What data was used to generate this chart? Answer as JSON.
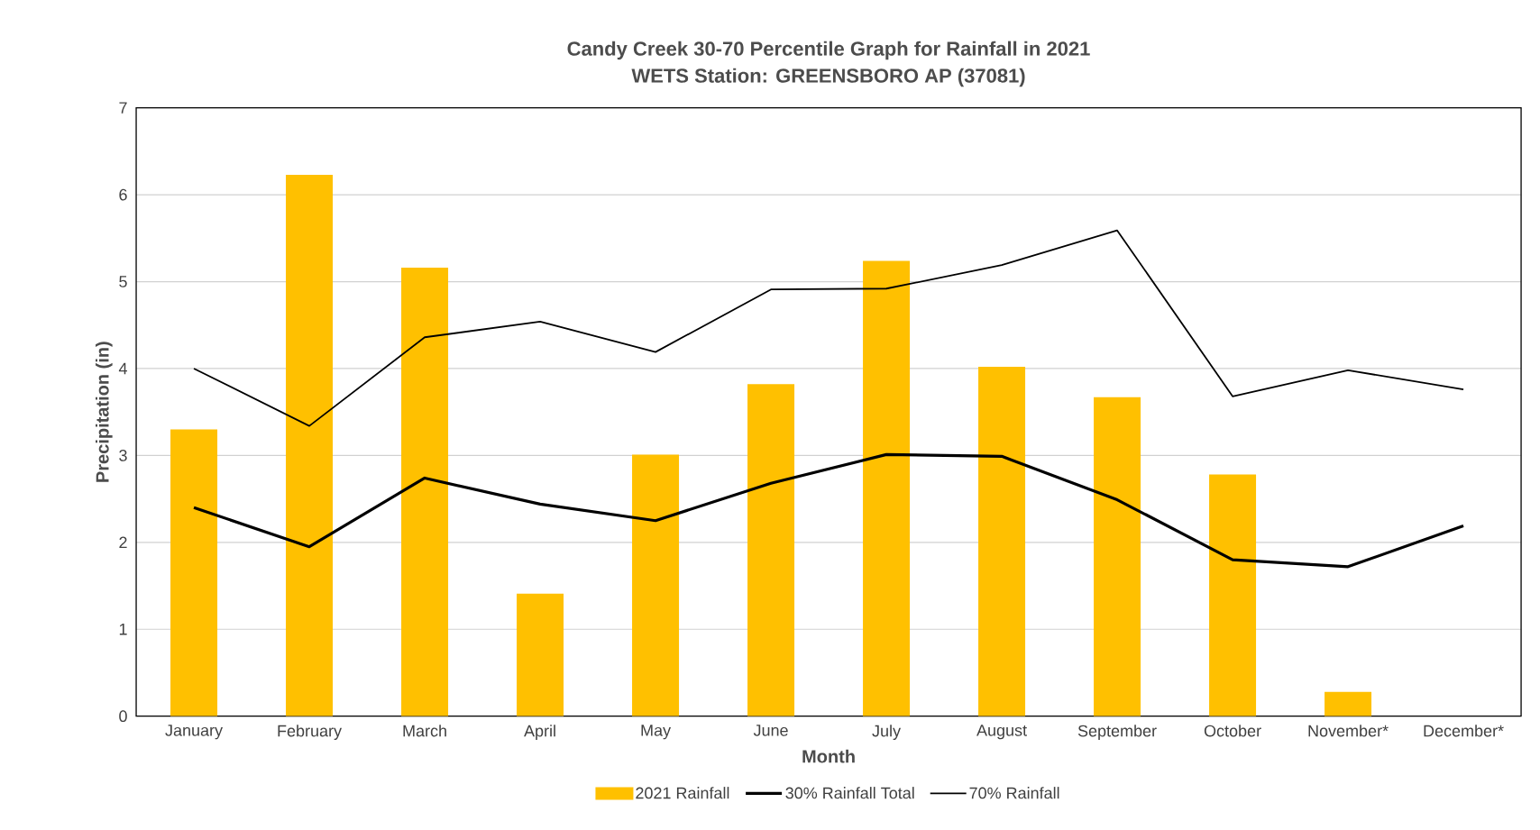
{
  "chart_data": {
    "type": "bar",
    "title": "Candy Creek 30-70 Percentile Graph for Rainfall in 2021",
    "subtitle": "WETS Station: GREENSBORO AP (37081)",
    "xlabel": "Month",
    "ylabel": "Precipitation (in)",
    "categories": [
      "January",
      "February",
      "March",
      "April",
      "May",
      "June",
      "July",
      "August",
      "September",
      "October",
      "November*",
      "December*"
    ],
    "series": [
      {
        "name": "2021 Rainfall",
        "color": "#ffc000",
        "values": [
          3.3,
          6.23,
          5.16,
          1.41,
          3.01,
          3.82,
          5.24,
          4.02,
          3.67,
          2.78,
          0.28,
          null
        ]
      },
      {
        "name": "30% Rainfall Total",
        "type": "line",
        "color": "#000000",
        "values": [
          2.4,
          1.95,
          2.74,
          2.44,
          2.25,
          2.68,
          3.01,
          2.99,
          2.49,
          1.8,
          1.72,
          2.19
        ]
      },
      {
        "name": "70% Rainfall",
        "type": "line",
        "color": "#000000",
        "values": [
          4.0,
          3.34,
          4.36,
          4.54,
          4.19,
          4.91,
          4.92,
          5.19,
          5.59,
          3.68,
          3.98,
          3.76
        ]
      }
    ],
    "ylim": [
      0,
      7
    ],
    "yticks": [
      0,
      1,
      2,
      3,
      4,
      5,
      6,
      7
    ],
    "grid": "y",
    "legend": "bottom"
  }
}
